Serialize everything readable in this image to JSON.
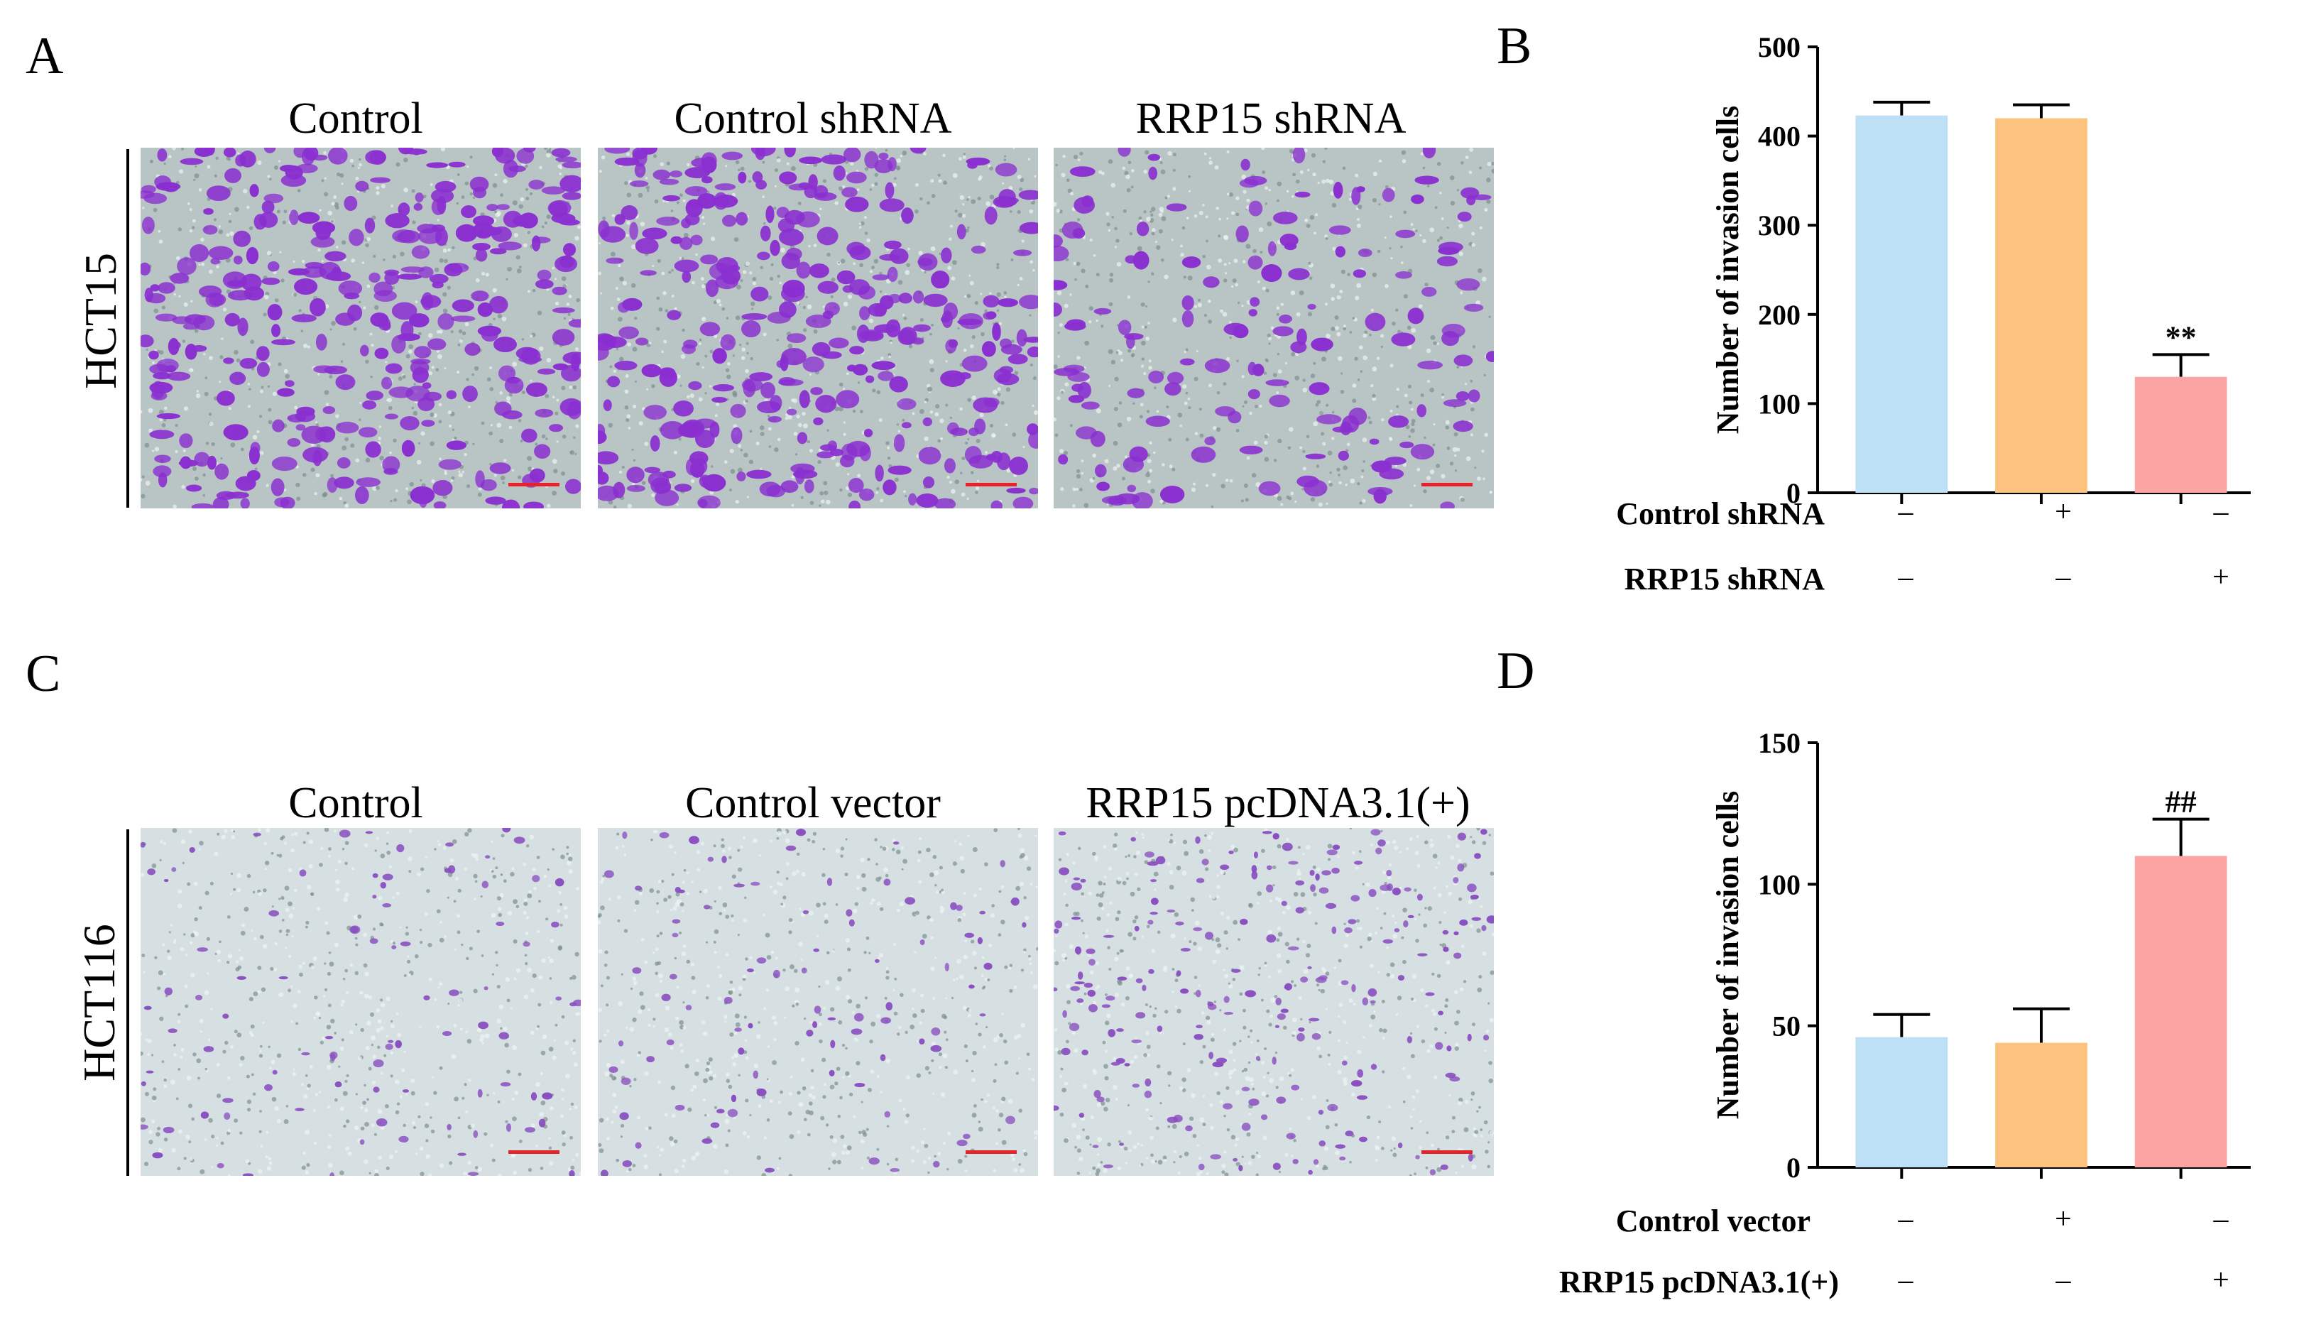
{
  "panels": {
    "A": {
      "letter": "A",
      "row_label": "HCT15",
      "columns": [
        "Control",
        "Control shRNA",
        "RRP15 shRNA"
      ],
      "cell_density": [
        1.0,
        1.0,
        0.45
      ],
      "stain_color": "#8a2fd0",
      "background_color": "#b9c4c4"
    },
    "B": {
      "letter": "B",
      "conditions": [
        {
          "label": "Control shRNA",
          "signs": [
            "–",
            "+",
            "–"
          ]
        },
        {
          "label": "RRP15 shRNA",
          "signs": [
            "–",
            "–",
            "+"
          ]
        }
      ]
    },
    "C": {
      "letter": "C",
      "row_label": "HCT116",
      "columns": [
        "Control",
        "Control vector",
        "RRP15 pcDNA3.1(+)"
      ],
      "cell_density": [
        0.35,
        0.35,
        0.8
      ],
      "stain_color": "#8a4fc0",
      "background_color": "#d6e0e2"
    },
    "D": {
      "letter": "D",
      "conditions": [
        {
          "label": "Control vector",
          "signs": [
            "–",
            "+",
            "–"
          ]
        },
        {
          "label": "RRP15 pcDNA3.1(+)",
          "signs": [
            "–",
            "–",
            "+"
          ]
        }
      ]
    }
  },
  "chart_data": [
    {
      "type": "bar",
      "panel": "B",
      "ylabel": "Number of invasion cells",
      "ylim": [
        0,
        500
      ],
      "yticks": [
        0,
        100,
        200,
        300,
        400,
        500
      ],
      "values": [
        423,
        420,
        130
      ],
      "errors": [
        15,
        15,
        25
      ],
      "annotations": [
        "",
        "",
        "**"
      ],
      "colors": [
        "#bde0f7",
        "#fcc37e",
        "#fca3a3"
      ]
    },
    {
      "type": "bar",
      "panel": "D",
      "ylabel": "Number of invasion cells",
      "ylim": [
        0,
        150
      ],
      "yticks": [
        0,
        50,
        100,
        150
      ],
      "values": [
        46,
        44,
        110
      ],
      "errors": [
        8,
        12,
        13
      ],
      "annotations": [
        "",
        "",
        "##"
      ],
      "colors": [
        "#bde0f7",
        "#fcc37e",
        "#fca3a3"
      ]
    }
  ]
}
